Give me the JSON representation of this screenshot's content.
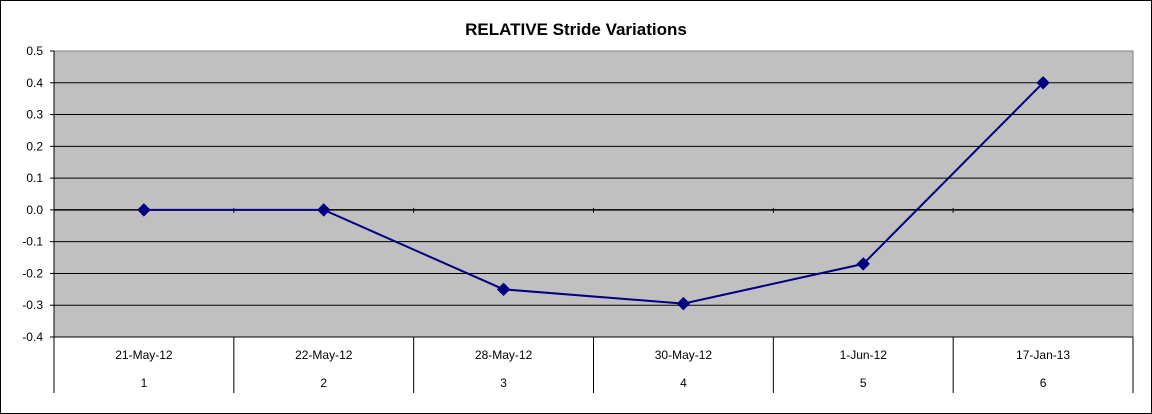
{
  "chart_data": {
    "type": "line",
    "title": "RELATIVE Stride Variations",
    "xlabel": "",
    "ylabel": "",
    "categories": [
      {
        "date": "21-May-12",
        "index": "1"
      },
      {
        "date": "22-May-12",
        "index": "2"
      },
      {
        "date": "28-May-12",
        "index": "3"
      },
      {
        "date": "30-May-12",
        "index": "4"
      },
      {
        "date": "1-Jun-12",
        "index": "5"
      },
      {
        "date": "17-Jan-13",
        "index": "6"
      }
    ],
    "series": [
      {
        "values": [
          0.0,
          0.0,
          -0.25,
          -0.295,
          -0.17,
          0.4
        ],
        "color": "#000080",
        "marker": "diamond"
      }
    ],
    "ylim": [
      -0.4,
      0.5
    ],
    "yticks": [
      "0.5",
      "0.4",
      "0.3",
      "0.2",
      "0.1",
      "0.0",
      "-0.1",
      "-0.2",
      "-0.3",
      "-0.4"
    ],
    "grid": true,
    "plot_background": "#c0c0c0",
    "legend": "none"
  }
}
